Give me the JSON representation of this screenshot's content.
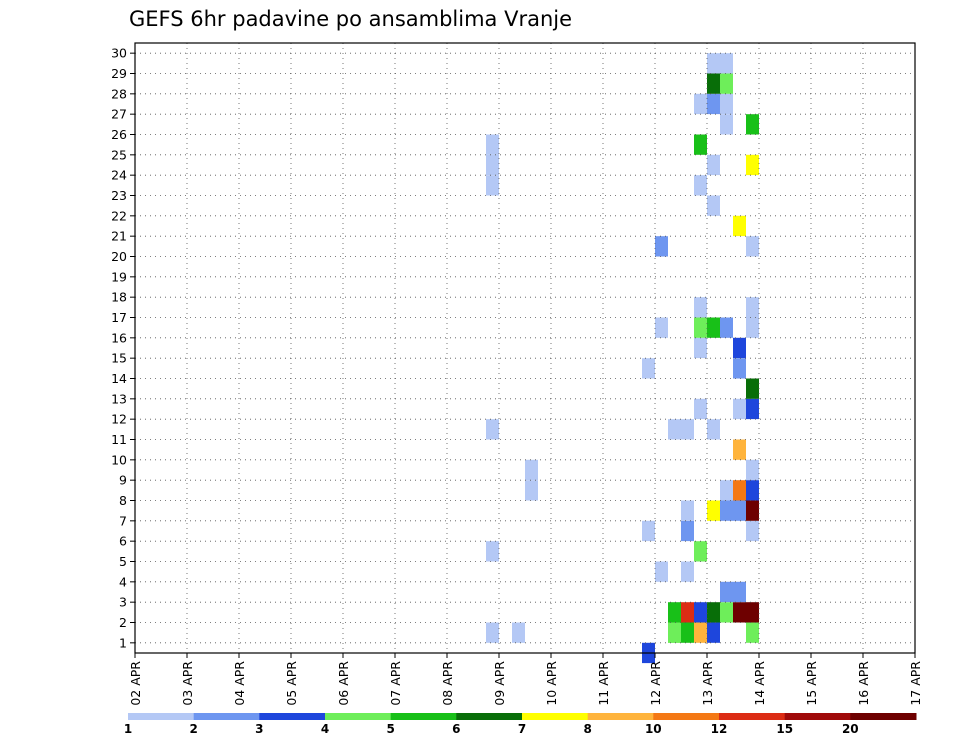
{
  "chart_data": {
    "type": "heatmap",
    "title": "GEFS 6hr padavine po ansamblima Vranje",
    "xlabel": "",
    "ylabel": "",
    "x_tick_labels": [
      "02 APR",
      "03 APR",
      "04 APR",
      "05 APR",
      "06 APR",
      "07 APR",
      "08 APR",
      "09 APR",
      "10 APR",
      "11 APR",
      "12 APR",
      "13 APR",
      "14 APR",
      "15 APR",
      "16 APR",
      "17 APR"
    ],
    "y_tick_labels": [
      "1",
      "2",
      "3",
      "4",
      "5",
      "6",
      "7",
      "8",
      "9",
      "10",
      "11",
      "12",
      "13",
      "14",
      "15",
      "16",
      "17",
      "18",
      "19",
      "20",
      "21",
      "22",
      "23",
      "24",
      "25",
      "26",
      "27",
      "28",
      "29",
      "30"
    ],
    "x_range_days": [
      0,
      15
    ],
    "y_range": [
      0,
      30
    ],
    "time_step_hours": 6,
    "grid": true,
    "colorbar": {
      "labels": [
        "1",
        "2",
        "3",
        "4",
        "5",
        "6",
        "7",
        "8",
        "10",
        "12",
        "15",
        "20"
      ],
      "colors": [
        "#b4c8f5",
        "#6e96f0",
        "#1e46dc",
        "#6eee5a",
        "#18c018",
        "#086e08",
        "#ffff00",
        "#ffb43c",
        "#f47814",
        "#dc2c14",
        "#a00a0a",
        "#6e0000"
      ]
    },
    "cells": [
      [
        3,
        27,
        1,
        1
      ],
      [
        3,
        27,
        5,
        1
      ],
      [
        3,
        27,
        23,
        1
      ],
      [
        3,
        27,
        24,
        1
      ],
      [
        3,
        27,
        25,
        1
      ],
      [
        3,
        27,
        11,
        1
      ],
      [
        10,
        29,
        1,
        1
      ],
      [
        7,
        30,
        8,
        1
      ],
      [
        11,
        39,
        0,
        3
      ],
      [
        12,
        39,
        14,
        1
      ],
      [
        12,
        39,
        6,
        1
      ],
      [
        7,
        30,
        9,
        1
      ],
      [
        8,
        40,
        4,
        1
      ],
      [
        8,
        40,
        16,
        1
      ],
      [
        9,
        40,
        20,
        2
      ],
      [
        9,
        41,
        1,
        4
      ],
      [
        9,
        41,
        2,
        5
      ],
      [
        10,
        41,
        1,
        4
      ],
      [
        10,
        41,
        11,
        1
      ],
      [
        10,
        42,
        4,
        1
      ],
      [
        10,
        42,
        11,
        1
      ],
      [
        11,
        42,
        1,
        5
      ],
      [
        11,
        42,
        2,
        10
      ],
      [
        11,
        42,
        6,
        2
      ],
      [
        11,
        42,
        7,
        1
      ],
      [
        11,
        43,
        1,
        8
      ],
      [
        11,
        43,
        2,
        3
      ],
      [
        11,
        43,
        5,
        4
      ],
      [
        11,
        43,
        15,
        1
      ],
      [
        11,
        43,
        23,
        1
      ],
      [
        11,
        43,
        25,
        5
      ],
      [
        11,
        43,
        27,
        1
      ],
      [
        11,
        43,
        16,
        4
      ],
      [
        11,
        43,
        17,
        1
      ],
      [
        11,
        43,
        12,
        1
      ],
      [
        11,
        44,
        1,
        3
      ],
      [
        11,
        44,
        2,
        6
      ],
      [
        11,
        44,
        7,
        7
      ],
      [
        11,
        44,
        11,
        1
      ],
      [
        11,
        44,
        16,
        5
      ],
      [
        11,
        44,
        22,
        1
      ],
      [
        11,
        44,
        24,
        1
      ],
      [
        11,
        44,
        27,
        2
      ],
      [
        11,
        44,
        28,
        6
      ],
      [
        11,
        44,
        29,
        1
      ],
      [
        11,
        45,
        2,
        4
      ],
      [
        11,
        45,
        3,
        2
      ],
      [
        11,
        45,
        7,
        2
      ],
      [
        11,
        45,
        8,
        1
      ],
      [
        11,
        45,
        26,
        1
      ],
      [
        11,
        45,
        27,
        1
      ],
      [
        11,
        45,
        28,
        4
      ],
      [
        11,
        45,
        29,
        1
      ],
      [
        11,
        45,
        16,
        2
      ],
      [
        11,
        46,
        2,
        12
      ],
      [
        11,
        46,
        3,
        2
      ],
      [
        11,
        46,
        7,
        2
      ],
      [
        11,
        46,
        8,
        9
      ],
      [
        11,
        46,
        15,
        3
      ],
      [
        11,
        46,
        10,
        8
      ],
      [
        11,
        46,
        12,
        1
      ],
      [
        11,
        46,
        21,
        7
      ],
      [
        11,
        46,
        14,
        2
      ],
      [
        11,
        47,
        1,
        4
      ],
      [
        11,
        47,
        2,
        14
      ],
      [
        11,
        47,
        6,
        1
      ],
      [
        11,
        47,
        7,
        13
      ],
      [
        11,
        47,
        9,
        1
      ],
      [
        11,
        47,
        12,
        3
      ],
      [
        11,
        47,
        13,
        6
      ],
      [
        11,
        47,
        16,
        1
      ],
      [
        11,
        47,
        17,
        1
      ],
      [
        11,
        47,
        24,
        7
      ],
      [
        11,
        47,
        26,
        5
      ],
      [
        11,
        47,
        20,
        1
      ],
      [
        11,
        47,
        8,
        3
      ]
    ],
    "series": []
  }
}
